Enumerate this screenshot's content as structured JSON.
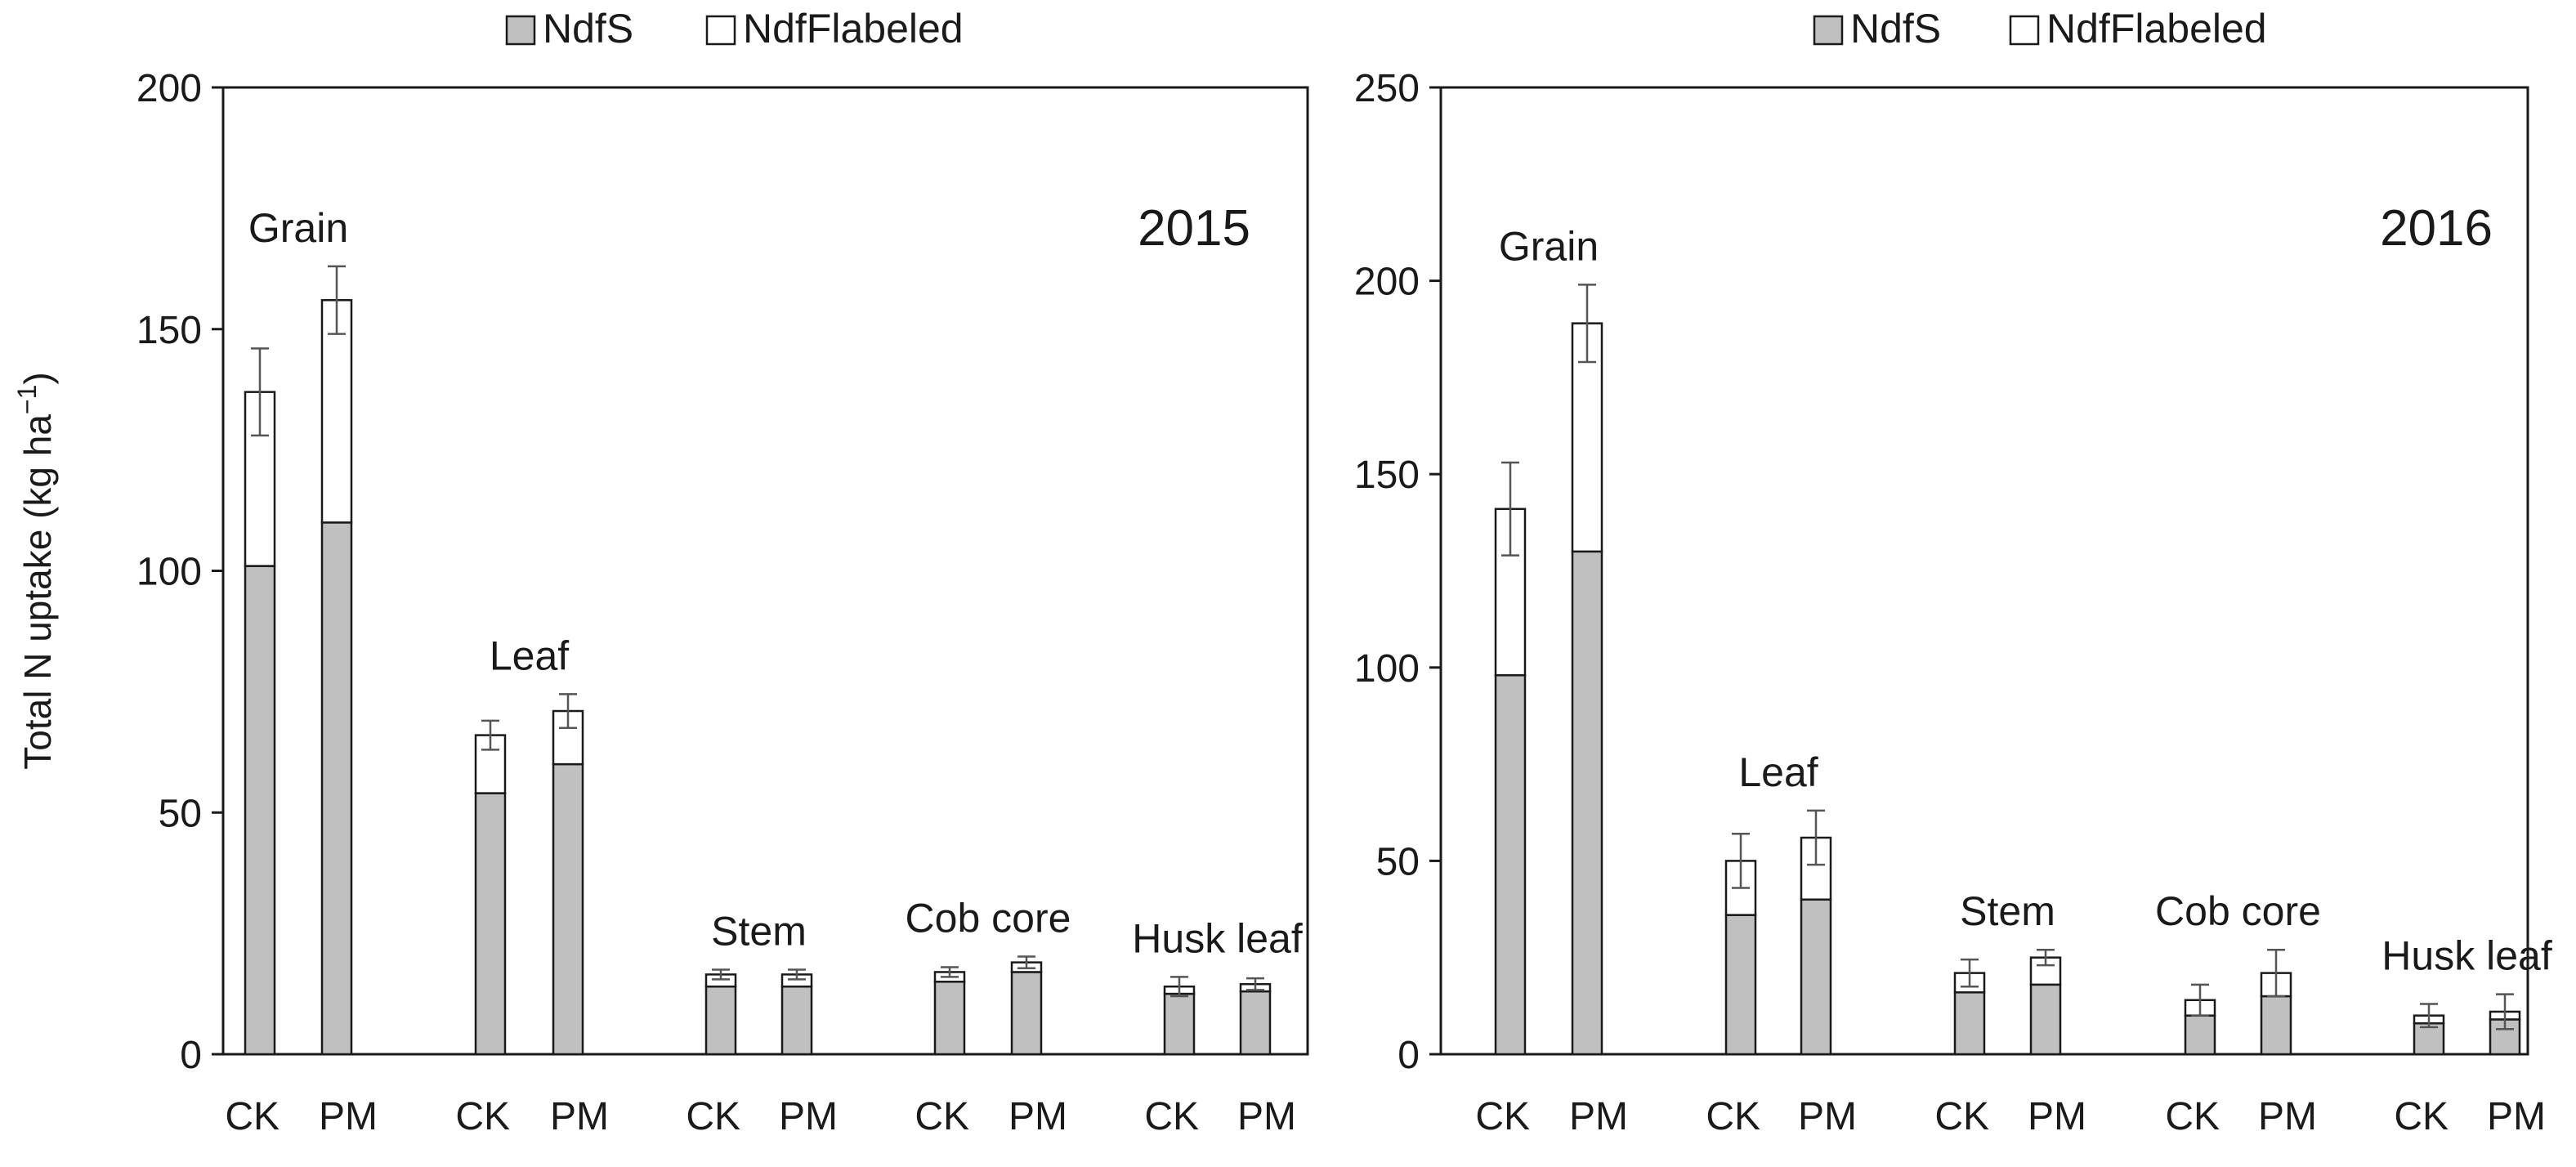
{
  "chart_data": [
    {
      "type": "bar",
      "subtype": "stacked",
      "title": "2015",
      "xlabel": "",
      "ylabel": "Total N uptake (kg ha",
      "ylabel_sup": "−1",
      "ylabel_close": ")",
      "ylim": [
        0,
        200
      ],
      "yticks": [
        "0",
        "50",
        "100",
        "150",
        "200"
      ],
      "grid": false,
      "legend": {
        "position": "top",
        "entries": [
          {
            "name": "NdfS",
            "color": "#c0c0c0"
          },
          {
            "name": "NdfFlabeled",
            "color": "#ffffff"
          }
        ]
      },
      "groups": [
        {
          "label": "Grain",
          "categories": [
            "CK",
            "PM"
          ],
          "ndfs": [
            101,
            110
          ],
          "total": [
            137,
            156
          ],
          "error": [
            9,
            7
          ]
        },
        {
          "label": "Leaf",
          "categories": [
            "CK",
            "PM"
          ],
          "ndfs": [
            54,
            60
          ],
          "total": [
            66,
            71
          ],
          "error": [
            3,
            3.5
          ]
        },
        {
          "label": "Stem",
          "categories": [
            "CK",
            "PM"
          ],
          "ndfs": [
            14,
            14
          ],
          "total": [
            16.5,
            16.5
          ],
          "error": [
            1,
            1
          ]
        },
        {
          "label": "Cob core",
          "categories": [
            "CK",
            "PM"
          ],
          "ndfs": [
            15,
            17
          ],
          "total": [
            17,
            19
          ],
          "error": [
            1,
            1.2
          ]
        },
        {
          "label": "Husk leaf",
          "categories": [
            "CK",
            "PM"
          ],
          "ndfs": [
            12.5,
            13
          ],
          "total": [
            14,
            14.5
          ],
          "error": [
            2,
            1.2
          ]
        }
      ],
      "series": [
        {
          "name": "NdfS",
          "values": [
            101,
            110,
            54,
            60,
            14,
            14,
            15,
            17,
            12.5,
            13
          ]
        },
        {
          "name": "NdfFlabeled",
          "values": [
            36,
            46,
            12,
            11,
            2.5,
            2.5,
            2,
            2,
            1.5,
            1.5
          ]
        }
      ]
    },
    {
      "type": "bar",
      "subtype": "stacked",
      "title": "2016",
      "xlabel": "",
      "ylabel": "",
      "ylim": [
        0,
        250
      ],
      "yticks": [
        "0",
        "50",
        "100",
        "150",
        "200",
        "250"
      ],
      "grid": false,
      "legend": {
        "position": "top",
        "entries": [
          {
            "name": "NdfS",
            "color": "#c0c0c0"
          },
          {
            "name": "NdfFlabeled",
            "color": "#ffffff"
          }
        ]
      },
      "groups": [
        {
          "label": "Grain",
          "categories": [
            "CK",
            "PM"
          ],
          "ndfs": [
            98,
            130
          ],
          "total": [
            141,
            189
          ],
          "error": [
            12,
            10
          ]
        },
        {
          "label": "Leaf",
          "categories": [
            "CK",
            "PM"
          ],
          "ndfs": [
            36,
            40
          ],
          "total": [
            50,
            56
          ],
          "error": [
            7,
            7
          ]
        },
        {
          "label": "Stem",
          "categories": [
            "CK",
            "PM"
          ],
          "ndfs": [
            16,
            18
          ],
          "total": [
            21,
            25
          ],
          "error": [
            3.5,
            2
          ]
        },
        {
          "label": "Cob core",
          "categories": [
            "CK",
            "PM"
          ],
          "ndfs": [
            10,
            15
          ],
          "total": [
            14,
            21
          ],
          "error": [
            4,
            6
          ]
        },
        {
          "label": "Husk leaf",
          "categories": [
            "CK",
            "PM"
          ],
          "ndfs": [
            8,
            9
          ],
          "total": [
            10,
            11
          ],
          "error": [
            3,
            4.5
          ]
        }
      ],
      "series": [
        {
          "name": "NdfS",
          "values": [
            98,
            130,
            36,
            40,
            16,
            18,
            10,
            15,
            8,
            9
          ]
        },
        {
          "name": "NdfFlabeled",
          "values": [
            43,
            59,
            14,
            16,
            5,
            7,
            4,
            6,
            2,
            2
          ]
        }
      ]
    }
  ]
}
